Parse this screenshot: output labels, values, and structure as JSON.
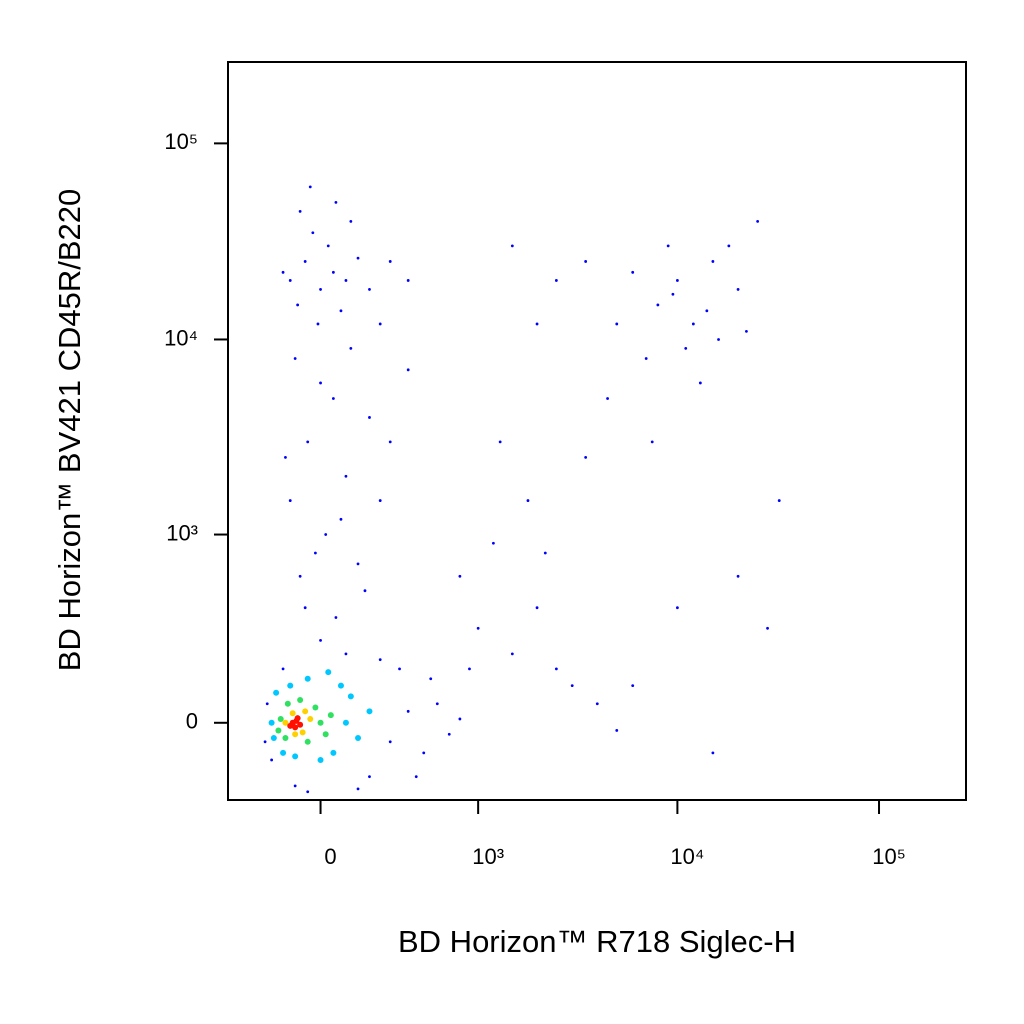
{
  "chart_data": {
    "type": "scatter",
    "x_label": "BD Horizon™ R718 Siglec-H",
    "y_label": "BD Horizon™ BV421 CD45R/B220",
    "xscale": "biexponential",
    "yscale": "biexponential",
    "xlim": [
      -430,
      270000
    ],
    "ylim": [
      -230,
      260000
    ],
    "xticks": [
      0,
      {
        "value": 1000,
        "label": "10³"
      },
      {
        "value": 10000,
        "label": "10⁴"
      },
      {
        "value": 100000,
        "label": "10⁵"
      }
    ],
    "yticks": [
      0,
      {
        "value": 1000,
        "label": "10³"
      },
      {
        "value": 10000,
        "label": "10⁴"
      },
      {
        "value": 100000,
        "label": "10⁵"
      }
    ],
    "series": [
      {
        "color": "#0000ff",
        "x": [
          -120,
          -60,
          0,
          50,
          -90,
          30,
          100,
          -30,
          150,
          -150,
          80,
          200,
          -10,
          120,
          300,
          -80,
          250,
          60,
          400,
          -40,
          -100,
          50,
          -50,
          100,
          -120,
          20,
          150,
          -80,
          200,
          0,
          -140,
          80,
          300,
          -20,
          120,
          250,
          -60,
          180,
          60,
          400,
          -200,
          -220,
          300,
          400,
          500,
          600,
          200,
          -100,
          100,
          0,
          -150,
          350,
          700,
          800,
          450,
          -50,
          250,
          550,
          150,
          -230,
          1000,
          1500,
          2000,
          800,
          1200,
          3000,
          2500,
          4000,
          5000,
          900,
          1800,
          3500,
          6000,
          2200,
          1300,
          10000,
          28000,
          15000,
          8000,
          10000,
          12000,
          15000,
          9000,
          7000,
          11000,
          20000,
          6000,
          14000,
          18000,
          25000,
          5000,
          13000,
          16000,
          9500,
          22000,
          3500,
          4500,
          7500,
          32000,
          20000,
          2000,
          1500,
          2500
        ],
        "y": [
          20000,
          25000,
          18000,
          22000,
          15000,
          30000,
          20000,
          35000,
          26000,
          22000,
          14000,
          18000,
          12000,
          40000,
          25000,
          45000,
          12000,
          50000,
          20000,
          60000,
          8000,
          5000,
          3000,
          2000,
          1500,
          1000,
          700,
          600,
          4000,
          6000,
          2500,
          1200,
          3000,
          800,
          9000,
          1500,
          400,
          500,
          350,
          7000,
          -100,
          50,
          -50,
          30,
          -80,
          50,
          -150,
          -180,
          200,
          250,
          150,
          150,
          -30,
          10,
          -150,
          -200,
          180,
          120,
          -190,
          -50,
          300,
          200,
          400,
          600,
          900,
          100,
          150,
          50,
          -20,
          150,
          1500,
          2500,
          100,
          800,
          3000,
          400,
          300,
          -80,
          15000,
          20000,
          12000,
          25000,
          30000,
          8000,
          9000,
          18000,
          22000,
          14000,
          30000,
          40000,
          12000,
          6000,
          10000,
          17000,
          11000,
          25000,
          5000,
          3000,
          1500,
          600,
          12000,
          30000,
          20000
        ]
      },
      {
        "color": "#00c8ff",
        "x": [
          -200,
          -180,
          -150,
          100,
          80,
          150,
          -50,
          0,
          50,
          -120,
          200,
          -100,
          120,
          -190,
          30
        ],
        "y": [
          0,
          80,
          -80,
          0,
          100,
          -40,
          120,
          -100,
          -80,
          100,
          30,
          -90,
          70,
          -40,
          140
        ]
      },
      {
        "color": "#30e060",
        "x": [
          -160,
          -140,
          -20,
          20,
          -50,
          -130,
          40,
          -80,
          0,
          -170
        ],
        "y": [
          10,
          -40,
          40,
          -30,
          -50,
          50,
          20,
          60,
          0,
          -20
        ]
      },
      {
        "color": "#ffd000",
        "x": [
          -140,
          -110,
          -70,
          -40,
          -100,
          -60
        ],
        "y": [
          0,
          25,
          -25,
          10,
          -30,
          30
        ]
      },
      {
        "color": "#ff1000",
        "x": [
          -110,
          -95,
          -80,
          -120,
          -90,
          -100
        ],
        "y": [
          0,
          5,
          -5,
          -8,
          12,
          -12
        ]
      }
    ]
  }
}
